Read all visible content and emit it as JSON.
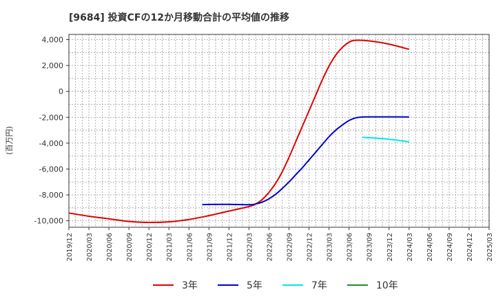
{
  "chart_data": {
    "type": "line",
    "title": "[9684]  投資CFの12か月移動合計の平均値の推移",
    "ylabel": "(百万円)",
    "xlabel": "",
    "ylim": [
      -10500,
      4400
    ],
    "yticks": [
      4000,
      2000,
      0,
      -2000,
      -4000,
      -6000,
      -8000,
      -10000
    ],
    "ytick_labels": [
      "4,000",
      "2,000",
      "0",
      "-2,000",
      "-4,000",
      "-6,000",
      "-8,000",
      "-10,000"
    ],
    "xticks": [
      "2019/12",
      "2020/03",
      "2020/06",
      "2020/09",
      "2020/12",
      "2021/03",
      "2021/06",
      "2021/09",
      "2021/12",
      "2022/03",
      "2022/06",
      "2022/09",
      "2022/12",
      "2023/03",
      "2023/06",
      "2023/09",
      "2023/12",
      "2024/03",
      "2024/06",
      "2024/09",
      "2024/12",
      "2025/03"
    ],
    "grid": true,
    "legend_position": "bottom",
    "series": [
      {
        "name": "3年",
        "color": "#e00000",
        "points": [
          [
            "2019/12",
            -9400
          ],
          [
            "2020/03",
            -9650
          ],
          [
            "2020/06",
            -9850
          ],
          [
            "2020/09",
            -10050
          ],
          [
            "2020/12",
            -10130
          ],
          [
            "2021/03",
            -10080
          ],
          [
            "2021/06",
            -9900
          ],
          [
            "2021/09",
            -9600
          ],
          [
            "2021/12",
            -9250
          ],
          [
            "2022/03",
            -8900
          ],
          [
            "2022/04",
            -8700
          ],
          [
            "2022/05",
            -8350
          ],
          [
            "2022/06",
            -7800
          ],
          [
            "2022/07",
            -7100
          ],
          [
            "2022/08",
            -6200
          ],
          [
            "2022/09",
            -5100
          ],
          [
            "2022/10",
            -3900
          ],
          [
            "2022/11",
            -2700
          ],
          [
            "2022/12",
            -1500
          ],
          [
            "2023/01",
            -300
          ],
          [
            "2023/02",
            900
          ],
          [
            "2023/03",
            1950
          ],
          [
            "2023/04",
            2800
          ],
          [
            "2023/05",
            3400
          ],
          [
            "2023/06",
            3800
          ],
          [
            "2023/07",
            3950
          ],
          [
            "2023/09",
            3900
          ],
          [
            "2023/12",
            3650
          ],
          [
            "2024/03",
            3250
          ]
        ]
      },
      {
        "name": "5年",
        "color": "#0000cc",
        "points": [
          [
            "2021/08",
            -8750
          ],
          [
            "2021/09",
            -8740
          ],
          [
            "2021/12",
            -8730
          ],
          [
            "2022/03",
            -8760
          ],
          [
            "2022/04",
            -8700
          ],
          [
            "2022/05",
            -8550
          ],
          [
            "2022/06",
            -8300
          ],
          [
            "2022/07",
            -7950
          ],
          [
            "2022/08",
            -7500
          ],
          [
            "2022/09",
            -7000
          ],
          [
            "2022/10",
            -6450
          ],
          [
            "2022/11",
            -5900
          ],
          [
            "2022/12",
            -5300
          ],
          [
            "2023/01",
            -4700
          ],
          [
            "2023/02",
            -4100
          ],
          [
            "2023/03",
            -3500
          ],
          [
            "2023/04",
            -3000
          ],
          [
            "2023/05",
            -2600
          ],
          [
            "2023/06",
            -2250
          ],
          [
            "2023/07",
            -2050
          ],
          [
            "2023/08",
            -1980
          ],
          [
            "2023/09",
            -1970
          ],
          [
            "2023/12",
            -1970
          ],
          [
            "2024/03",
            -1980
          ]
        ]
      },
      {
        "name": "7年",
        "color": "#00e5ee",
        "points": [
          [
            "2023/08",
            -3550
          ],
          [
            "2023/09",
            -3580
          ],
          [
            "2023/12",
            -3700
          ],
          [
            "2024/03",
            -3900
          ]
        ]
      },
      {
        "name": "10年",
        "color": "#228b22",
        "points": []
      }
    ]
  }
}
